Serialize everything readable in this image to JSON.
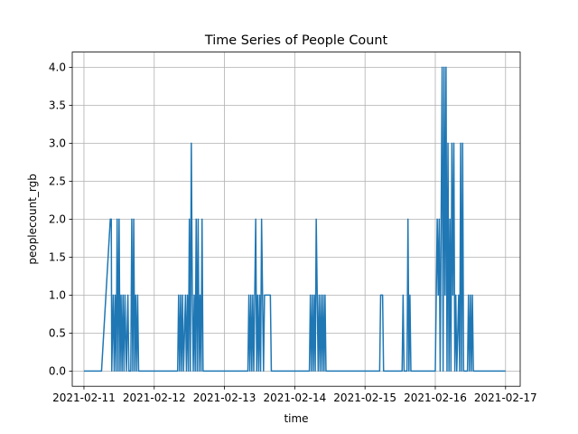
{
  "chart_data": {
    "type": "line",
    "title": "Time Series of People Count",
    "xlabel": "time",
    "ylabel": "peoplecount_rgb",
    "grid": true,
    "legend": "none",
    "x_type": "date",
    "xlim": [
      "2021-02-10T20:00",
      "2021-02-17T05:00"
    ],
    "ylim": [
      -0.2,
      4.2
    ],
    "x_ticks": [
      "2021-02-11",
      "2021-02-12",
      "2021-02-13",
      "2021-02-14",
      "2021-02-15",
      "2021-02-16",
      "2021-02-17"
    ],
    "y_ticks": [
      0.0,
      0.5,
      1.0,
      1.5,
      2.0,
      2.5,
      3.0,
      3.5,
      4.0
    ],
    "series": [
      {
        "color": "#1f77b4",
        "points": [
          [
            "2021-02-11T00:00",
            0
          ],
          [
            "2021-02-11T06:00",
            0
          ],
          [
            "2021-02-11T09:00",
            2
          ],
          [
            "2021-02-11T09:20",
            2
          ],
          [
            "2021-02-11T09:30",
            0
          ],
          [
            "2021-02-11T10:00",
            1
          ],
          [
            "2021-02-11T10:20",
            0
          ],
          [
            "2021-02-11T10:40",
            1
          ],
          [
            "2021-02-11T11:00",
            0
          ],
          [
            "2021-02-11T11:20",
            2
          ],
          [
            "2021-02-11T11:40",
            0
          ],
          [
            "2021-02-11T12:00",
            2
          ],
          [
            "2021-02-11T12:20",
            0
          ],
          [
            "2021-02-11T12:40",
            1
          ],
          [
            "2021-02-11T13:00",
            0
          ],
          [
            "2021-02-11T13:20",
            1
          ],
          [
            "2021-02-11T13:40",
            0
          ],
          [
            "2021-02-11T14:00",
            1
          ],
          [
            "2021-02-11T14:30",
            0
          ],
          [
            "2021-02-11T15:00",
            1
          ],
          [
            "2021-02-11T15:20",
            0
          ],
          [
            "2021-02-11T16:00",
            0
          ],
          [
            "2021-02-11T16:20",
            2
          ],
          [
            "2021-02-11T16:40",
            0
          ],
          [
            "2021-02-11T17:00",
            2
          ],
          [
            "2021-02-11T17:20",
            0
          ],
          [
            "2021-02-11T17:40",
            1
          ],
          [
            "2021-02-11T18:00",
            0
          ],
          [
            "2021-02-11T18:20",
            1
          ],
          [
            "2021-02-11T18:40",
            0
          ],
          [
            "2021-02-12T08:00",
            0
          ],
          [
            "2021-02-12T08:20",
            1
          ],
          [
            "2021-02-12T08:40",
            0
          ],
          [
            "2021-02-12T09:00",
            1
          ],
          [
            "2021-02-12T09:20",
            0
          ],
          [
            "2021-02-12T09:40",
            1
          ],
          [
            "2021-02-12T10:00",
            0
          ],
          [
            "2021-02-12T10:40",
            1
          ],
          [
            "2021-02-12T11:00",
            0
          ],
          [
            "2021-02-12T11:20",
            1
          ],
          [
            "2021-02-12T11:40",
            0
          ],
          [
            "2021-02-12T12:00",
            2
          ],
          [
            "2021-02-12T12:20",
            0
          ],
          [
            "2021-02-12T12:40",
            3
          ],
          [
            "2021-02-12T13:00",
            1
          ],
          [
            "2021-02-12T13:20",
            0
          ],
          [
            "2021-02-12T13:40",
            1
          ],
          [
            "2021-02-12T14:00",
            0
          ],
          [
            "2021-02-12T14:20",
            2
          ],
          [
            "2021-02-12T14:40",
            0
          ],
          [
            "2021-02-12T15:00",
            2
          ],
          [
            "2021-02-12T15:20",
            0
          ],
          [
            "2021-02-12T15:40",
            1
          ],
          [
            "2021-02-12T16:00",
            0
          ],
          [
            "2021-02-12T16:20",
            2
          ],
          [
            "2021-02-12T16:40",
            0
          ],
          [
            "2021-02-13T08:00",
            0
          ],
          [
            "2021-02-13T08:20",
            1
          ],
          [
            "2021-02-13T08:40",
            0
          ],
          [
            "2021-02-13T09:00",
            1
          ],
          [
            "2021-02-13T09:20",
            0
          ],
          [
            "2021-02-13T09:40",
            1
          ],
          [
            "2021-02-13T10:00",
            0
          ],
          [
            "2021-02-13T10:20",
            1
          ],
          [
            "2021-02-13T10:40",
            2
          ],
          [
            "2021-02-13T11:00",
            0
          ],
          [
            "2021-02-13T11:20",
            1
          ],
          [
            "2021-02-13T11:40",
            0
          ],
          [
            "2021-02-13T12:00",
            1
          ],
          [
            "2021-02-13T12:20",
            0
          ],
          [
            "2021-02-13T12:40",
            2
          ],
          [
            "2021-02-13T13:00",
            1
          ],
          [
            "2021-02-13T13:20",
            0
          ],
          [
            "2021-02-13T13:40",
            1
          ],
          [
            "2021-02-13T15:40",
            1
          ],
          [
            "2021-02-13T16:00",
            0
          ],
          [
            "2021-02-14T05:00",
            0
          ],
          [
            "2021-02-14T05:20",
            1
          ],
          [
            "2021-02-14T05:40",
            0
          ],
          [
            "2021-02-14T06:00",
            1
          ],
          [
            "2021-02-14T06:20",
            0
          ],
          [
            "2021-02-14T06:40",
            1
          ],
          [
            "2021-02-14T07:00",
            0
          ],
          [
            "2021-02-14T07:20",
            2
          ],
          [
            "2021-02-14T07:40",
            1
          ],
          [
            "2021-02-14T08:00",
            0
          ],
          [
            "2021-02-14T08:20",
            1
          ],
          [
            "2021-02-14T08:40",
            0
          ],
          [
            "2021-02-14T09:00",
            1
          ],
          [
            "2021-02-14T09:20",
            0
          ],
          [
            "2021-02-14T09:40",
            1
          ],
          [
            "2021-02-14T10:00",
            0
          ],
          [
            "2021-02-14T10:20",
            1
          ],
          [
            "2021-02-14T10:40",
            0
          ],
          [
            "2021-02-15T05:00",
            0
          ],
          [
            "2021-02-15T05:20",
            1
          ],
          [
            "2021-02-15T06:00",
            1
          ],
          [
            "2021-02-15T06:20",
            0
          ],
          [
            "2021-02-15T12:40",
            0
          ],
          [
            "2021-02-15T13:00",
            1
          ],
          [
            "2021-02-15T13:20",
            0
          ],
          [
            "2021-02-15T14:20",
            0
          ],
          [
            "2021-02-15T14:40",
            2
          ],
          [
            "2021-02-15T15:00",
            0
          ],
          [
            "2021-02-15T15:20",
            1
          ],
          [
            "2021-02-15T15:40",
            0
          ],
          [
            "2021-02-16T00:00",
            0
          ],
          [
            "2021-02-16T00:20",
            1
          ],
          [
            "2021-02-16T00:40",
            2
          ],
          [
            "2021-02-16T01:00",
            1
          ],
          [
            "2021-02-16T01:20",
            2
          ],
          [
            "2021-02-16T01:40",
            0
          ],
          [
            "2021-02-16T02:00",
            2
          ],
          [
            "2021-02-16T02:20",
            4
          ],
          [
            "2021-02-16T02:40",
            0
          ],
          [
            "2021-02-16T03:00",
            4
          ],
          [
            "2021-02-16T03:20",
            1
          ],
          [
            "2021-02-16T03:40",
            4
          ],
          [
            "2021-02-16T04:00",
            0
          ],
          [
            "2021-02-16T04:20",
            3
          ],
          [
            "2021-02-16T04:40",
            0
          ],
          [
            "2021-02-16T05:00",
            2
          ],
          [
            "2021-02-16T05:20",
            0
          ],
          [
            "2021-02-16T05:40",
            3
          ],
          [
            "2021-02-16T06:00",
            1
          ],
          [
            "2021-02-16T06:20",
            3
          ],
          [
            "2021-02-16T06:40",
            0
          ],
          [
            "2021-02-16T07:00",
            1
          ],
          [
            "2021-02-16T07:20",
            0
          ],
          [
            "2021-02-16T08:00",
            1
          ],
          [
            "2021-02-16T08:20",
            0
          ],
          [
            "2021-02-16T08:40",
            3
          ],
          [
            "2021-02-16T09:00",
            0
          ],
          [
            "2021-02-16T09:20",
            3
          ],
          [
            "2021-02-16T09:40",
            0
          ],
          [
            "2021-02-16T11:00",
            0
          ],
          [
            "2021-02-16T11:20",
            1
          ],
          [
            "2021-02-16T11:40",
            0
          ],
          [
            "2021-02-16T12:00",
            1
          ],
          [
            "2021-02-16T12:20",
            0
          ],
          [
            "2021-02-16T12:40",
            1
          ],
          [
            "2021-02-16T13:00",
            0
          ],
          [
            "2021-02-17T00:00",
            0
          ]
        ]
      }
    ]
  }
}
